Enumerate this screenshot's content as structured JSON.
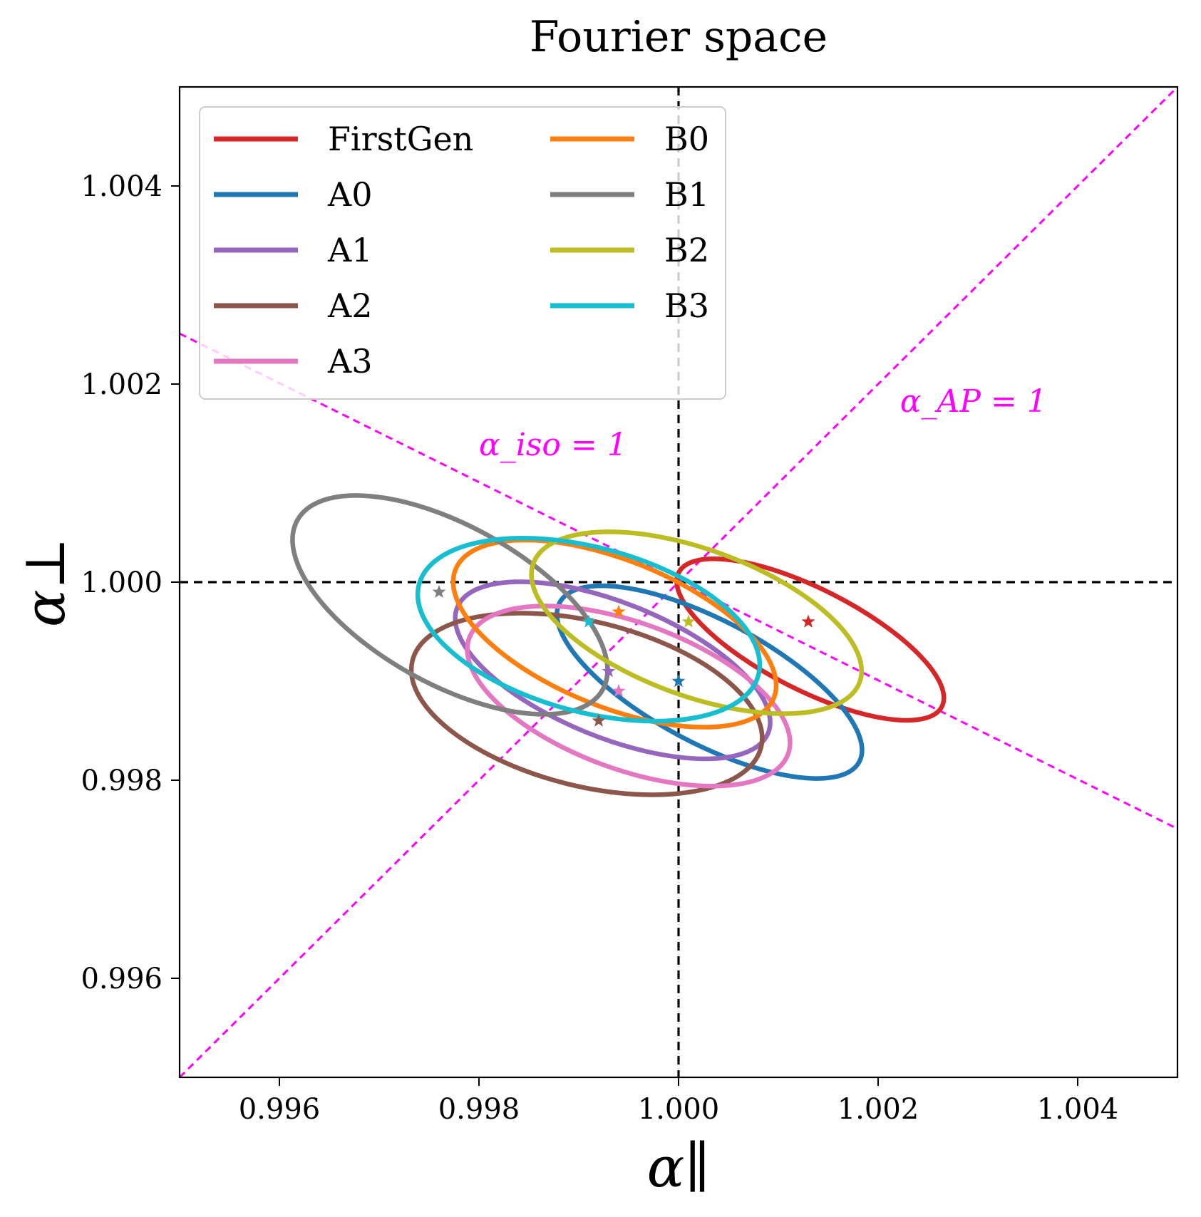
{
  "chart_data": {
    "type": "scatter",
    "title": "Fourier space",
    "xlabel": "α∥",
    "ylabel": "α⊥",
    "xlim": [
      0.995,
      1.005
    ],
    "ylim": [
      0.995,
      1.005
    ],
    "xticks": [
      "0.996",
      "0.998",
      "1.000",
      "1.002",
      "1.004"
    ],
    "yticks": [
      "0.996",
      "0.998",
      "1.000",
      "1.002",
      "1.004"
    ],
    "grid": false,
    "legend_position": "top-left",
    "reference_lines": {
      "x": 1.0,
      "y": 1.0,
      "color": "#000000",
      "annotations": [
        {
          "text": "α_AP = 1",
          "x": 1.00222,
          "y": 1.00172
        },
        {
          "text": "α_iso = 1",
          "x": 0.998,
          "y": 1.00128
        }
      ],
      "annotation_color": "#ff00ff"
    },
    "series": [
      {
        "name": "FirstGen",
        "color": "#d62728",
        "center": [
          1.0013,
          0.9996
        ],
        "ellipse": {
          "cx": 1.00132,
          "cy": 0.99942,
          "a": 0.00148,
          "b": 0.00051,
          "angle_deg": -27
        }
      },
      {
        "name": "A0",
        "color": "#1f77b4",
        "center": [
          1.0,
          0.999
        ],
        "ellipse": {
          "cx": 1.00031,
          "cy": 0.99899,
          "a": 0.0017,
          "b": 0.00062,
          "angle_deg": -28
        }
      },
      {
        "name": "A1",
        "color": "#9467bd",
        "center": [
          0.9993,
          0.9991
        ],
        "ellipse": {
          "cx": 0.99934,
          "cy": 0.99911,
          "a": 0.00168,
          "b": 0.00068,
          "angle_deg": -22
        }
      },
      {
        "name": "A2",
        "color": "#8c564b",
        "center": [
          0.9992,
          0.9986
        ],
        "ellipse": {
          "cx": 0.99908,
          "cy": 0.99877,
          "a": 0.0018,
          "b": 0.00083,
          "angle_deg": -14
        }
      },
      {
        "name": "A3",
        "color": "#e377c2",
        "center": [
          0.9994,
          0.9989
        ],
        "ellipse": {
          "cx": 0.9995,
          "cy": 0.99885,
          "a": 0.0017,
          "b": 0.00074,
          "angle_deg": -20
        }
      },
      {
        "name": "B0",
        "color": "#ff7f0e",
        "center": [
          0.9994,
          0.9997
        ],
        "ellipse": {
          "cx": 0.99936,
          "cy": 0.99948,
          "a": 0.00172,
          "b": 0.00074,
          "angle_deg": -22
        }
      },
      {
        "name": "B1",
        "color": "#7f7f7f",
        "center": [
          0.9976,
          0.9999
        ],
        "ellipse": {
          "cx": 0.99771,
          "cy": 0.99977,
          "a": 0.00175,
          "b": 0.0008,
          "angle_deg": -29
        }
      },
      {
        "name": "B2",
        "color": "#bcbd22",
        "center": [
          1.0001,
          0.9996
        ],
        "ellipse": {
          "cx": 1.00018,
          "cy": 0.99959,
          "a": 0.00174,
          "b": 0.00074,
          "angle_deg": -20
        }
      },
      {
        "name": "B3",
        "color": "#17becf",
        "center": [
          0.9991,
          0.9996
        ],
        "ellipse": {
          "cx": 0.9991,
          "cy": 0.99952,
          "a": 0.00176,
          "b": 0.00083,
          "angle_deg": -15
        }
      }
    ]
  }
}
